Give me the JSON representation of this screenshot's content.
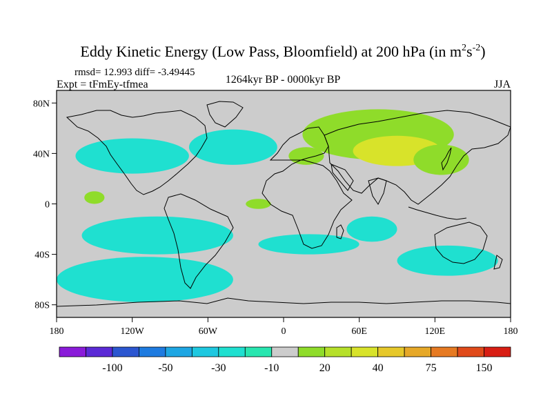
{
  "chart_data": {
    "type": "heatmap",
    "title_main": "Eddy Kinetic Energy (Low Pass, Bloomfield) at 200 hPa (in m",
    "title_unit_sup1": "2",
    "title_unit_s": "s",
    "title_unit_sup2": "-2",
    "title_close": ")",
    "rmsd_diff": "rmsd= 12.993 diff= -3.49445",
    "expt": "Expt = tFmEy-tfmea",
    "center_label": "1264kyr BP - 0000kyr BP",
    "season": "JJA",
    "x_range": [
      -180,
      180
    ],
    "y_range": [
      -90,
      90
    ],
    "x_ticks": [
      {
        "value": -180,
        "label": "180"
      },
      {
        "value": -120,
        "label": "120W"
      },
      {
        "value": -60,
        "label": "60W"
      },
      {
        "value": 0,
        "label": "0"
      },
      {
        "value": 60,
        "label": "60E"
      },
      {
        "value": 120,
        "label": "120E"
      },
      {
        "value": 180,
        "label": "180"
      }
    ],
    "y_ticks": [
      {
        "value": 80,
        "label": "80N"
      },
      {
        "value": 40,
        "label": "40N"
      },
      {
        "value": 0,
        "label": "0"
      },
      {
        "value": -40,
        "label": "40S"
      },
      {
        "value": -80,
        "label": "80S"
      }
    ],
    "colorbar": {
      "colors": [
        "#8a1bd9",
        "#5b2ad6",
        "#2b56d0",
        "#1e7be0",
        "#1ea6e3",
        "#1ec8e0",
        "#1fe0d0",
        "#28e6b0",
        "#cccccc",
        "#8fdc2a",
        "#b6e02a",
        "#d8e32a",
        "#e6c82a",
        "#e6a828",
        "#e67a22",
        "#e04a1a",
        "#d81e14"
      ],
      "labels": [
        "-100",
        "-50",
        "-30",
        "-10",
        "20",
        "40",
        "75",
        "150"
      ]
    },
    "regions": [
      {
        "sign": "positive",
        "level": 10,
        "lon": 75,
        "lat": 55,
        "rlon": 60,
        "rlat": 20
      },
      {
        "sign": "positive",
        "level": 30,
        "lon": 90,
        "lat": 42,
        "rlon": 35,
        "rlat": 12
      },
      {
        "sign": "positive",
        "level": 10,
        "lon": 18,
        "lat": 38,
        "rlon": 14,
        "rlat": 7
      },
      {
        "sign": "positive",
        "level": 10,
        "lon": 125,
        "lat": 35,
        "rlon": 22,
        "rlat": 12
      },
      {
        "sign": "negative",
        "level": -10,
        "lon": -40,
        "lat": 45,
        "rlon": 35,
        "rlat": 14
      },
      {
        "sign": "negative",
        "level": -10,
        "lon": -120,
        "lat": 38,
        "rlon": 45,
        "rlat": 14
      },
      {
        "sign": "negative",
        "level": -10,
        "lon": -100,
        "lat": -25,
        "rlon": 60,
        "rlat": 15
      },
      {
        "sign": "negative",
        "level": -10,
        "lon": -110,
        "lat": -60,
        "rlon": 70,
        "rlat": 18
      },
      {
        "sign": "negative",
        "level": -10,
        "lon": 20,
        "lat": -32,
        "rlon": 40,
        "rlat": 8
      },
      {
        "sign": "negative",
        "level": -10,
        "lon": 70,
        "lat": -20,
        "rlon": 20,
        "rlat": 10
      },
      {
        "sign": "negative",
        "level": -10,
        "lon": 130,
        "lat": -45,
        "rlon": 40,
        "rlat": 12
      },
      {
        "sign": "positive",
        "level": 10,
        "lon": -150,
        "lat": 5,
        "rlon": 8,
        "rlat": 5
      },
      {
        "sign": "positive",
        "level": 10,
        "lon": -20,
        "lat": 0,
        "rlon": 10,
        "rlat": 4
      }
    ]
  }
}
